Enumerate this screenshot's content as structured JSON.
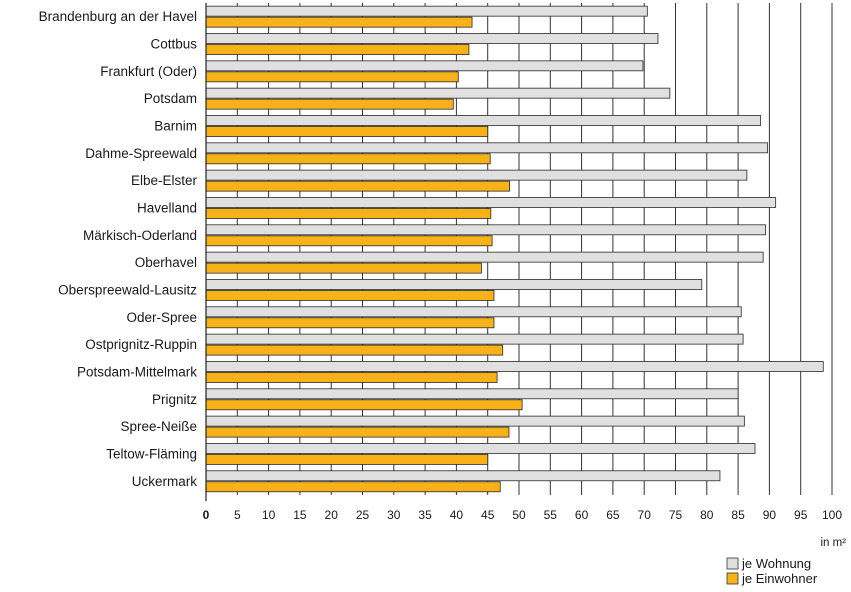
{
  "chart_data": {
    "type": "bar",
    "orientation": "horizontal",
    "categories": [
      "Brandenburg an der Havel",
      "Cottbus",
      "Frankfurt (Oder)",
      "Potsdam",
      "Barnim",
      "Dahme-Spreewald",
      "Elbe-Elster",
      "Havelland",
      "Märkisch-Oderland",
      "Oberhavel",
      "Oberspreewald-Lausitz",
      "Oder-Spree",
      "Ostprignitz-Ruppin",
      "Potsdam-Mittelmark",
      "Prignitz",
      "Spree-Neiße",
      "Teltow-Fläming",
      "Uckermark"
    ],
    "series": [
      {
        "name": "je Wohnung",
        "color": "#e0e0e0",
        "values": [
          70.5,
          72.2,
          69.8,
          74.1,
          88.6,
          89.7,
          86.4,
          91.0,
          89.4,
          89.0,
          79.2,
          85.5,
          85.8,
          98.6,
          85.0,
          86.0,
          87.7,
          82.1
        ]
      },
      {
        "name": "je Einwohner",
        "color": "#f7b21a",
        "values": [
          42.5,
          42.0,
          40.3,
          39.5,
          45.0,
          45.4,
          48.5,
          45.5,
          45.7,
          44.0,
          46.0,
          46.0,
          47.4,
          46.5,
          50.5,
          48.4,
          45.0,
          47.0
        ]
      }
    ],
    "xlim": [
      0,
      100
    ],
    "xticks": [
      "0",
      "5",
      "10",
      "15",
      "20",
      "25",
      "30",
      "35",
      "40",
      "45",
      "50",
      "55",
      "60",
      "65",
      "70",
      "75",
      "80",
      "85",
      "90",
      "95",
      "100"
    ],
    "xlabel": "in m²",
    "grid": "vertical",
    "legend_position": "bottom-right"
  }
}
